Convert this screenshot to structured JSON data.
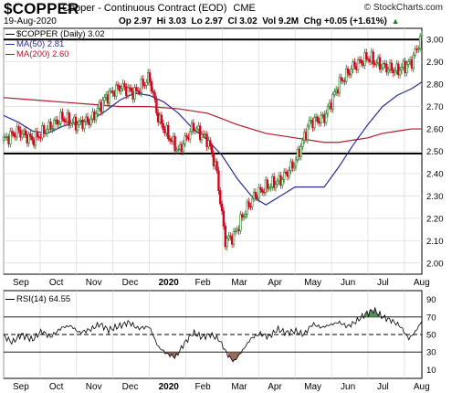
{
  "header": {
    "symbol": "$COPPER",
    "description": "Copper - Continuous Contract (EOD)",
    "exchange": "CME",
    "date": "19-Aug-2020",
    "quote": "Op 2.97  Hi 3.03  Lo 2.97  Cl 3.02  Vol 9.2M  Chg +0.05 (+1.61%)",
    "change_arrow": "▲",
    "brand": "© StockCharts.com"
  },
  "legend": {
    "price": "$COPPER (Daily) 3.02",
    "ma50": "MA(50) 2.81",
    "ma200": "MA(200) 2.60",
    "rsi": "RSI(14) 64.55"
  },
  "colors": {
    "up": "#1f7a1f",
    "down": "#d6001c",
    "ma50": "#2a2f8f",
    "ma200": "#b01a2e",
    "rsi_over": "#5a8f5a",
    "rsi_under": "#9a6a5a",
    "grid": "#d9d9d9"
  },
  "chart_data": [
    {
      "type": "line",
      "title": "$COPPER (Daily) 3.02",
      "ylim": [
        1.95,
        3.05
      ],
      "y_ticks": [
        2.0,
        2.1,
        2.2,
        2.3,
        2.4,
        2.5,
        2.6,
        2.7,
        2.8,
        2.9,
        3.0
      ],
      "x_labels": [
        "Sep",
        "Oct",
        "Nov",
        "Dec",
        "2020",
        "Feb",
        "Mar",
        "Apr",
        "May",
        "Jun",
        "Jul",
        "Aug"
      ],
      "x_label_pos": [
        0,
        1.25,
        2.5,
        3.75,
        5,
        6.25,
        7.5,
        8.75,
        10,
        11.25,
        12.5,
        13.75
      ],
      "horizontal_lines": [
        3.0,
        2.49
      ],
      "series": [
        {
          "name": "$COPPER (Daily) 3.02",
          "x": [
            0,
            0.5,
            1,
            1.5,
            2,
            2.5,
            3,
            3.5,
            4,
            4.5,
            5,
            5.3,
            5.6,
            6,
            6.5,
            7,
            7.3,
            7.6,
            7.9,
            8.2,
            8.6,
            9,
            9.5,
            10,
            10.5,
            11,
            11.5,
            12,
            12.5,
            13,
            13.5,
            14,
            14.35
          ],
          "values": [
            2.55,
            2.59,
            2.55,
            2.6,
            2.65,
            2.62,
            2.64,
            2.74,
            2.79,
            2.76,
            2.83,
            2.65,
            2.58,
            2.5,
            2.61,
            2.55,
            2.42,
            2.1,
            2.12,
            2.21,
            2.3,
            2.34,
            2.37,
            2.45,
            2.63,
            2.65,
            2.8,
            2.88,
            2.92,
            2.88,
            2.86,
            2.9,
            3.02
          ]
        },
        {
          "name": "MA(50) 2.81",
          "x": [
            0,
            0.5,
            1,
            1.5,
            2,
            2.5,
            3,
            3.5,
            4,
            4.5,
            5,
            5.5,
            6,
            6.5,
            7,
            7.5,
            8,
            8.5,
            9,
            9.5,
            10,
            10.5,
            11,
            11.5,
            12,
            12.5,
            13,
            13.5,
            14,
            14.35
          ],
          "values": [
            2.66,
            2.63,
            2.59,
            2.58,
            2.61,
            2.63,
            2.64,
            2.68,
            2.73,
            2.76,
            2.75,
            2.72,
            2.67,
            2.6,
            2.55,
            2.48,
            2.38,
            2.3,
            2.26,
            2.3,
            2.34,
            2.34,
            2.34,
            2.43,
            2.53,
            2.62,
            2.7,
            2.75,
            2.78,
            2.81
          ]
        },
        {
          "name": "MA(200) 2.60",
          "x": [
            0,
            1,
            2,
            3,
            4,
            5,
            6,
            7,
            8,
            9,
            10,
            11,
            11.5,
            12,
            12.5,
            13,
            13.5,
            14,
            14.35
          ],
          "values": [
            2.74,
            2.73,
            2.72,
            2.71,
            2.7,
            2.7,
            2.69,
            2.67,
            2.62,
            2.58,
            2.56,
            2.54,
            2.54,
            2.55,
            2.56,
            2.58,
            2.59,
            2.6,
            2.6
          ]
        }
      ]
    },
    {
      "type": "line",
      "title": "RSI(14) 64.55",
      "ylim": [
        0,
        100
      ],
      "y_ticks": [
        10,
        30,
        50,
        70,
        90
      ],
      "x_labels": [
        "Sep",
        "Oct",
        "Nov",
        "Dec",
        "2020",
        "Feb",
        "Mar",
        "Apr",
        "May",
        "Jun",
        "Jul",
        "Aug"
      ],
      "x_label_pos": [
        0,
        1.25,
        2.5,
        3.75,
        5,
        6.25,
        7.5,
        8.75,
        10,
        11.25,
        12.5,
        13.75
      ],
      "horizontal_lines": [
        70,
        50,
        30
      ],
      "series": [
        {
          "name": "RSI(14) 64.55",
          "x": [
            0,
            0.3,
            0.6,
            1,
            1.3,
            1.6,
            2,
            2.3,
            2.6,
            3,
            3.3,
            3.6,
            4,
            4.3,
            4.6,
            5,
            5.3,
            5.6,
            5.9,
            6.2,
            6.5,
            6.8,
            7.1,
            7.4,
            7.7,
            7.9,
            8.2,
            8.5,
            8.8,
            9.1,
            9.4,
            9.7,
            10,
            10.3,
            10.6,
            10.9,
            11.2,
            11.5,
            11.8,
            12.1,
            12.4,
            12.7,
            13,
            13.3,
            13.6,
            13.9,
            14.1,
            14.35
          ],
          "values": [
            48,
            41,
            50,
            44,
            54,
            47,
            58,
            60,
            52,
            56,
            62,
            55,
            60,
            64,
            57,
            59,
            36,
            28,
            24,
            40,
            52,
            47,
            50,
            44,
            26,
            19,
            32,
            46,
            51,
            47,
            56,
            52,
            54,
            50,
            62,
            58,
            61,
            64,
            59,
            65,
            73,
            78,
            70,
            66,
            60,
            45,
            52,
            65
          ]
        }
      ]
    }
  ]
}
